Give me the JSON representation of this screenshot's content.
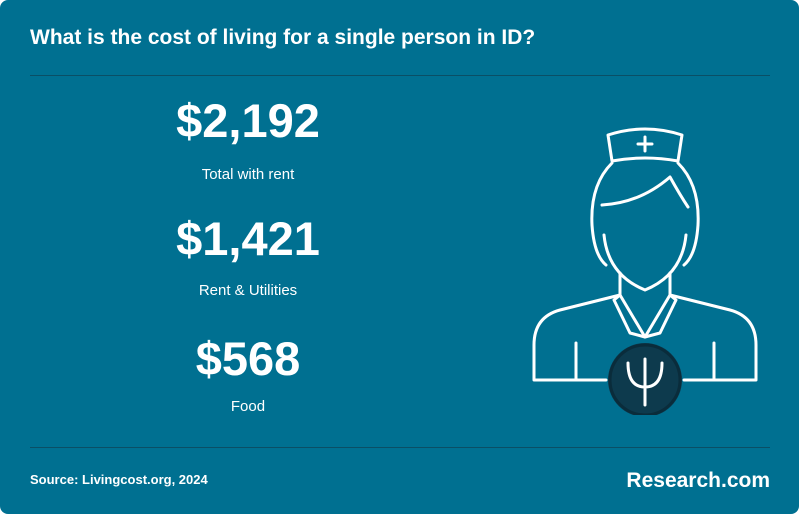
{
  "title": "What is the cost of living for a single person in ID?",
  "stats": [
    {
      "value": "$2,192",
      "label": "Total with rent"
    },
    {
      "value": "$1,421",
      "label": "Rent & Utilities"
    },
    {
      "value": "$568",
      "label": "Food"
    }
  ],
  "source": "Source: Livingcost.org, 2024",
  "brand": "Research.com"
}
